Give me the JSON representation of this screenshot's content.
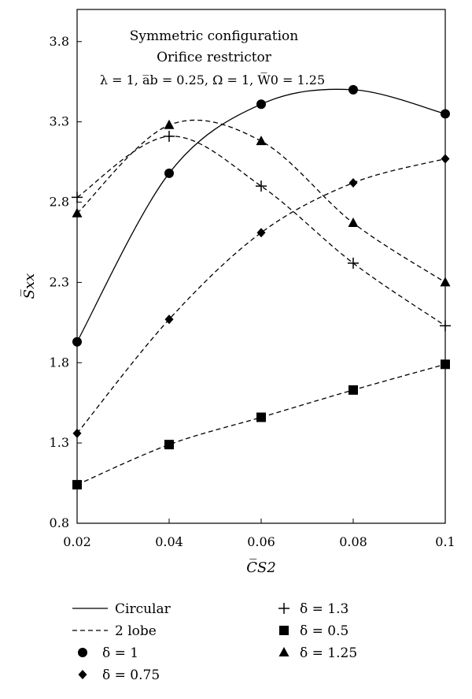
{
  "chart_data": {
    "type": "line",
    "annotations": [
      "Symmetric configuration",
      "Orifice restrictor",
      "λ = 1, a̅b = 0.25, Ω = 1, W̅0 = 1.25"
    ],
    "xlabel": "C̅S2",
    "ylabel": "S̅xx",
    "xlim": [
      0.02,
      0.1
    ],
    "ylim": [
      0.8,
      4.0
    ],
    "x_ticks": [
      "0.02",
      "0.04",
      "0.06",
      "0.08",
      "0.1"
    ],
    "y_ticks": [
      "0.8",
      "1.3",
      "1.8",
      "2.3",
      "2.8",
      "3.3",
      "3.8"
    ],
    "x": [
      0.02,
      0.04,
      0.06,
      0.08,
      0.1
    ],
    "series": [
      {
        "name": "δ = 1",
        "bearing": "Circular",
        "line": "solid",
        "marker": "circle",
        "values": [
          1.93,
          2.98,
          3.41,
          3.5,
          3.35
        ]
      },
      {
        "name": "δ = 0.75",
        "bearing": "2 lobe",
        "line": "dashed",
        "marker": "diamond",
        "values": [
          1.36,
          2.07,
          2.61,
          2.92,
          3.07
        ]
      },
      {
        "name": "δ = 1.3",
        "bearing": "2 lobe",
        "line": "dashed",
        "marker": "plus",
        "values": [
          2.83,
          3.21,
          2.9,
          2.42,
          2.03
        ]
      },
      {
        "name": "δ = 0.5",
        "bearing": "2 lobe",
        "line": "dashed",
        "marker": "square",
        "values": [
          1.04,
          1.29,
          1.46,
          1.63,
          1.79
        ]
      },
      {
        "name": "δ = 1.25",
        "bearing": "2 lobe",
        "line": "dashed",
        "marker": "triangle",
        "values": [
          2.73,
          3.28,
          3.18,
          2.67,
          2.3
        ]
      }
    ],
    "legend": {
      "lines": [
        {
          "label": "Circular",
          "line": "solid"
        },
        {
          "label": "2 lobe",
          "line": "dashed"
        }
      ],
      "markers_left": [
        {
          "label": "δ = 1",
          "marker": "circle"
        },
        {
          "label": "δ = 0.75",
          "marker": "diamond"
        }
      ],
      "markers_right": [
        {
          "label": "δ = 1.3",
          "marker": "plus"
        },
        {
          "label": "δ = 0.5",
          "marker": "square"
        },
        {
          "label": "δ = 1.25",
          "marker": "triangle"
        }
      ]
    },
    "grid": false,
    "legend_position": "bottom"
  }
}
